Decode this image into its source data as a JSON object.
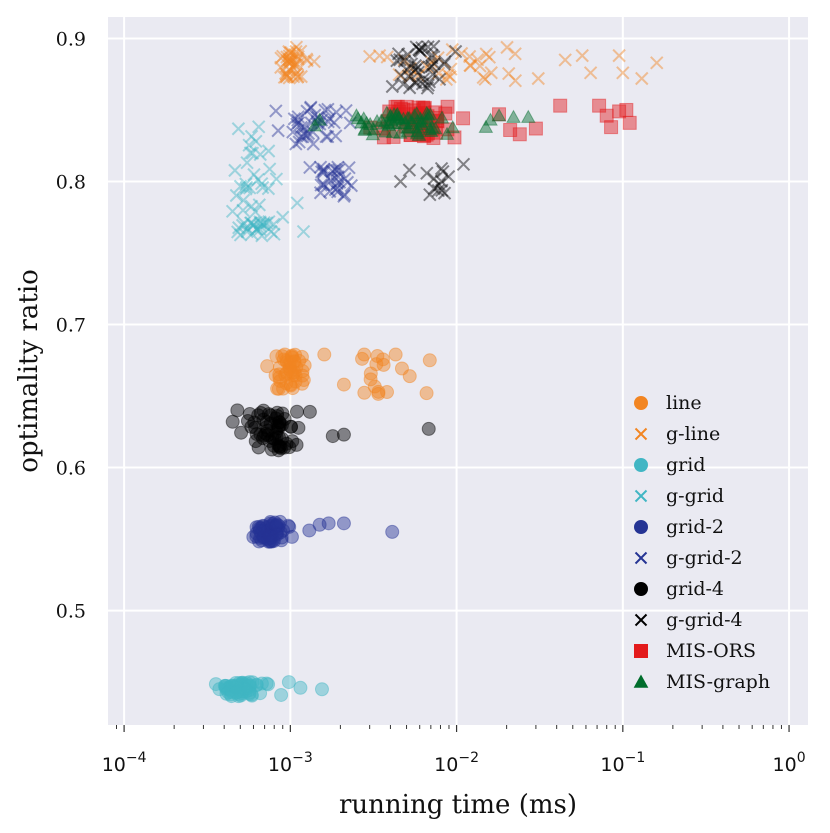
{
  "chart_data": {
    "type": "scatter",
    "title": "",
    "xlabel": "running time (ms)",
    "ylabel": "optimality ratio",
    "xscale": "log",
    "xlim": [
      8e-05,
      1.3
    ],
    "ylim": [
      0.42,
      0.915
    ],
    "x_ticks": [
      {
        "value": 0.0001,
        "base": "10",
        "exp": "−4"
      },
      {
        "value": 0.001,
        "base": "10",
        "exp": "−3"
      },
      {
        "value": 0.01,
        "base": "10",
        "exp": "−2"
      },
      {
        "value": 0.1,
        "base": "10",
        "exp": "−1"
      },
      {
        "value": 1,
        "base": "10",
        "exp": "0"
      }
    ],
    "y_ticks": [
      {
        "value": 0.5,
        "label": "0.5"
      },
      {
        "value": 0.6,
        "label": "0.6"
      },
      {
        "value": 0.7,
        "label": "0.7"
      },
      {
        "value": 0.8,
        "label": "0.8"
      },
      {
        "value": 0.9,
        "label": "0.9"
      }
    ],
    "grid": true,
    "legend_position": "bottom-right",
    "series": [
      {
        "name": "line",
        "marker": "circle",
        "color": "#f28522",
        "clusters": [
          {
            "x_range": [
              0.0006,
              0.0016
            ],
            "y_range": [
              0.655,
              0.68
            ],
            "n": 45
          },
          {
            "x_range": [
              0.0016,
              0.007
            ],
            "y_range": [
              0.65,
              0.68
            ],
            "n": 14
          }
        ],
        "points": [
          [
            0.0069,
            0.675
          ],
          [
            0.0066,
            0.652
          ],
          [
            0.0027,
            0.676
          ],
          [
            0.0043,
            0.679
          ],
          [
            0.0021,
            0.658
          ],
          [
            0.0016,
            0.679
          ]
        ]
      },
      {
        "name": "g-line",
        "marker": "x",
        "color": "#f28522",
        "clusters": [
          {
            "x_range": [
              0.0007,
              0.0015
            ],
            "y_range": [
              0.872,
              0.894
            ],
            "n": 40
          },
          {
            "x_range": [
              0.0015,
              0.05
            ],
            "y_range": [
              0.87,
              0.894
            ],
            "n": 32
          }
        ],
        "points": [
          [
            0.095,
            0.888
          ],
          [
            0.1,
            0.876
          ],
          [
            0.13,
            0.872
          ],
          [
            0.16,
            0.883
          ],
          [
            0.045,
            0.885
          ],
          [
            0.057,
            0.888
          ],
          [
            0.064,
            0.876
          ],
          [
            0.031,
            0.872
          ]
        ]
      },
      {
        "name": "grid",
        "marker": "circle",
        "color": "#41b6c4",
        "clusters": [
          {
            "x_range": [
              0.0003,
              0.0008
            ],
            "y_range": [
              0.44,
              0.45
            ],
            "n": 60
          }
        ],
        "points": [
          [
            0.00088,
            0.441
          ],
          [
            0.00115,
            0.446
          ],
          [
            0.00155,
            0.445
          ],
          [
            0.00072,
            0.449
          ],
          [
            0.00098,
            0.45
          ]
        ]
      },
      {
        "name": "g-grid",
        "marker": "x",
        "color": "#41b6c4",
        "clusters": [
          {
            "x_range": [
              0.0004,
              0.001
            ],
            "y_range": [
              0.762,
              0.772
            ],
            "n": 26
          },
          {
            "x_range": [
              0.0004,
              0.0009
            ],
            "y_range": [
              0.775,
              0.84
            ],
            "n": 30
          }
        ],
        "points": [
          [
            0.0012,
            0.765
          ],
          [
            0.0009,
            0.775
          ],
          [
            0.0011,
            0.785
          ]
        ]
      },
      {
        "name": "grid-2",
        "marker": "circle",
        "color": "#253494",
        "clusters": [
          {
            "x_range": [
              0.0005,
              0.0012
            ],
            "y_range": [
              0.548,
              0.562
            ],
            "n": 60
          }
        ],
        "points": [
          [
            0.0015,
            0.56
          ],
          [
            0.0017,
            0.561
          ],
          [
            0.0021,
            0.561
          ],
          [
            0.0041,
            0.555
          ],
          [
            0.0013,
            0.556
          ]
        ]
      },
      {
        "name": "g-grid-2",
        "marker": "x",
        "color": "#253494",
        "clusters": [
          {
            "x_range": [
              0.0006,
              0.0035
            ],
            "y_range": [
              0.825,
              0.852
            ],
            "n": 40
          },
          {
            "x_range": [
              0.0012,
              0.0028
            ],
            "y_range": [
              0.787,
              0.81
            ],
            "n": 30
          }
        ],
        "points": []
      },
      {
        "name": "grid-4",
        "marker": "circle",
        "color": "#000000",
        "clusters": [
          {
            "x_range": [
              0.00045,
              0.0014
            ],
            "y_range": [
              0.612,
              0.64
            ],
            "n": 60
          }
        ],
        "points": [
          [
            0.0018,
            0.622
          ],
          [
            0.0021,
            0.623
          ],
          [
            0.0068,
            0.627
          ],
          [
            0.00048,
            0.64
          ],
          [
            0.00045,
            0.632
          ]
        ]
      },
      {
        "name": "g-grid-4",
        "marker": "x",
        "color": "#000000",
        "clusters": [
          {
            "x_range": [
              0.0035,
              0.011
            ],
            "y_range": [
              0.865,
              0.895
            ],
            "n": 40
          },
          {
            "x_range": [
              0.006,
              0.01
            ],
            "y_range": [
              0.79,
              0.81
            ],
            "n": 12
          }
        ],
        "points": [
          [
            0.0052,
            0.808
          ],
          [
            0.0046,
            0.8
          ],
          [
            0.011,
            0.812
          ]
        ]
      },
      {
        "name": "MIS-ORS",
        "marker": "square",
        "color": "#e31a1c",
        "clusters": [
          {
            "x_range": [
              0.0025,
              0.014
            ],
            "y_range": [
              0.83,
              0.853
            ],
            "n": 60
          }
        ],
        "points": [
          [
            0.018,
            0.847
          ],
          [
            0.021,
            0.836
          ],
          [
            0.024,
            0.833
          ],
          [
            0.03,
            0.837
          ],
          [
            0.042,
            0.853
          ],
          [
            0.072,
            0.853
          ],
          [
            0.08,
            0.846
          ],
          [
            0.085,
            0.838
          ],
          [
            0.095,
            0.849
          ],
          [
            0.105,
            0.85
          ],
          [
            0.11,
            0.841
          ]
        ]
      },
      {
        "name": "MIS-graph",
        "marker": "triangle",
        "color": "#006d2c",
        "clusters": [
          {
            "x_range": [
              0.0017,
              0.013
            ],
            "y_range": [
              0.832,
              0.848
            ],
            "n": 60
          }
        ],
        "points": [
          [
            0.0015,
            0.843
          ],
          [
            0.0014,
            0.839
          ],
          [
            0.016,
            0.843
          ],
          [
            0.018,
            0.846
          ],
          [
            0.022,
            0.845
          ],
          [
            0.027,
            0.845
          ],
          [
            0.015,
            0.838
          ]
        ]
      }
    ]
  }
}
